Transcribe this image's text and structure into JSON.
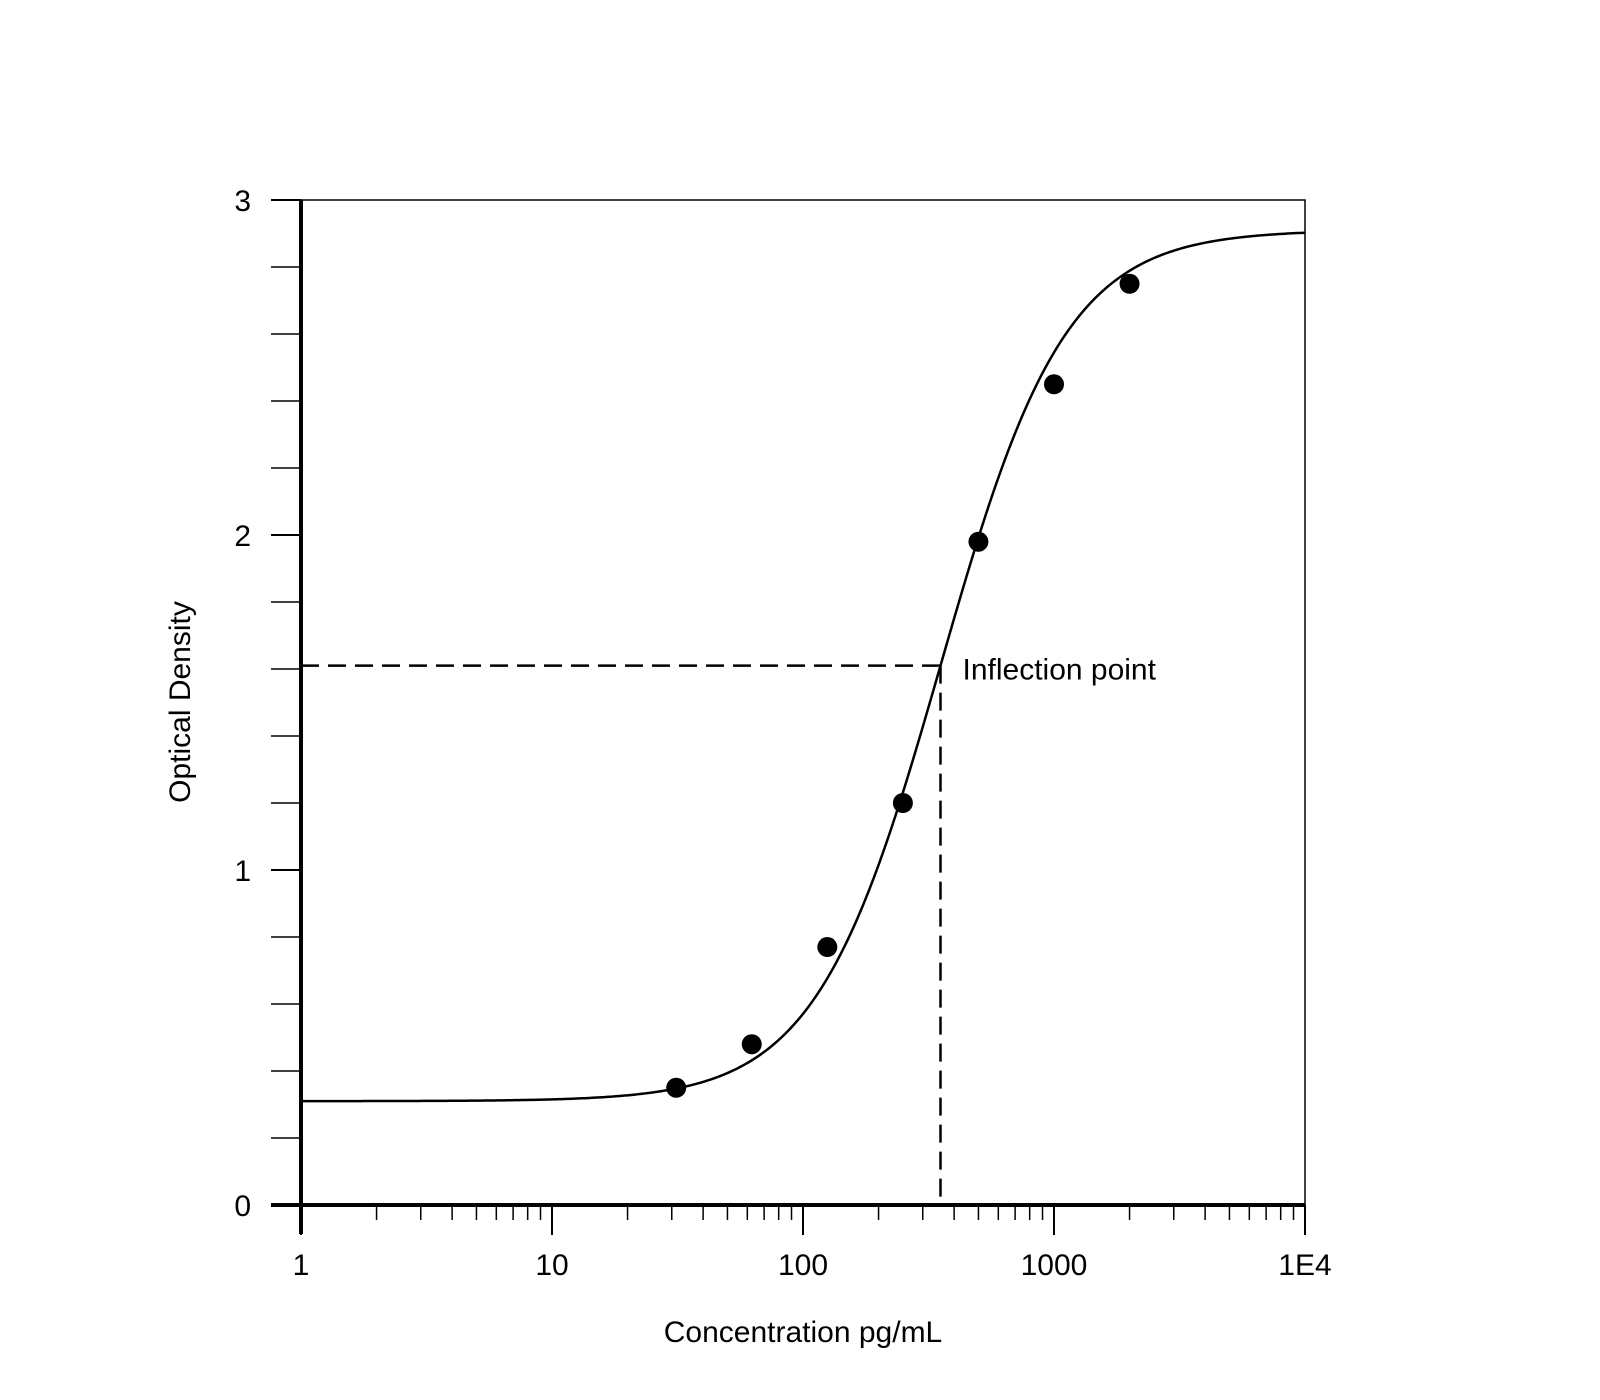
{
  "chart_data": {
    "type": "scatter",
    "xlabel": "Concentration pg/mL",
    "ylabel": "Optical Density",
    "x_scale": "log",
    "xlim": [
      1,
      10000
    ],
    "ylim": [
      0,
      3
    ],
    "x_ticks": [
      {
        "value": 1,
        "label": "1"
      },
      {
        "value": 10,
        "label": "10"
      },
      {
        "value": 100,
        "label": "100"
      },
      {
        "value": 1000,
        "label": "1000"
      },
      {
        "value": 10000,
        "label": "1E4"
      }
    ],
    "y_ticks": [
      {
        "value": 0,
        "label": "0"
      },
      {
        "value": 1,
        "label": "1"
      },
      {
        "value": 2,
        "label": "2"
      },
      {
        "value": 3,
        "label": "3"
      }
    ],
    "y_minor_step": 0.2,
    "grid": false,
    "points": [
      {
        "x": 31.25,
        "y": 0.35
      },
      {
        "x": 62.5,
        "y": 0.48
      },
      {
        "x": 125,
        "y": 0.77
      },
      {
        "x": 250,
        "y": 1.2
      },
      {
        "x": 500,
        "y": 1.98
      },
      {
        "x": 1000,
        "y": 2.45
      },
      {
        "x": 2000,
        "y": 2.75
      }
    ],
    "fit_curve": {
      "model": "4PL",
      "bottom": 0.31,
      "top": 2.91,
      "ec50": 353,
      "hill": 1.74
    },
    "annotation": {
      "text": "Inflection point",
      "x": 353,
      "y": 1.61
    },
    "colors": {
      "line": "#000000",
      "points": "#000000",
      "background": "#ffffff"
    }
  }
}
